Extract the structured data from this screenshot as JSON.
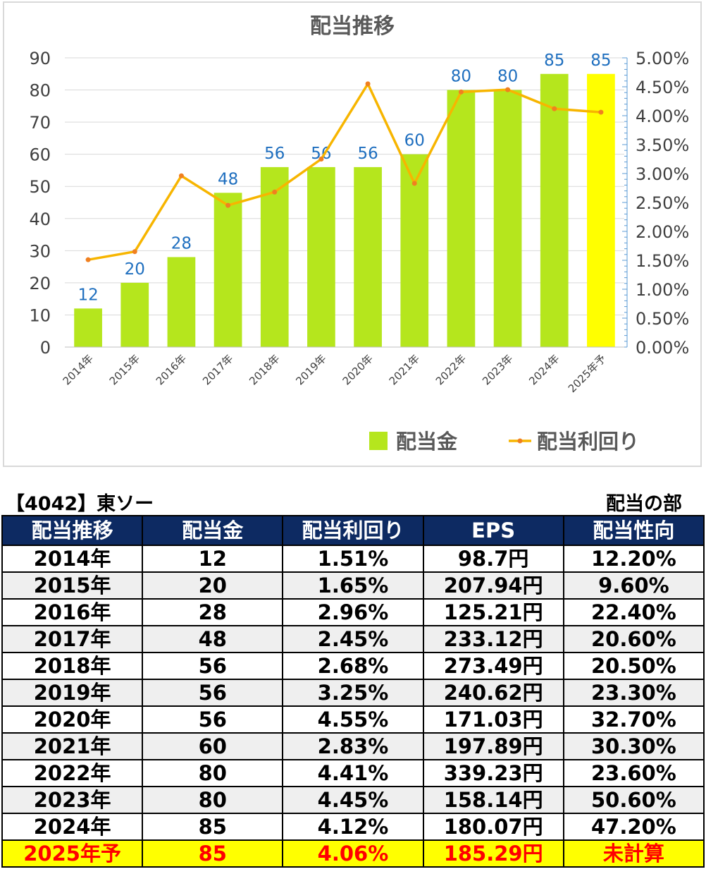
{
  "chart_data": {
    "type": "bar",
    "title": "配当推移",
    "categories": [
      "2014年",
      "2015年",
      "2016年",
      "2017年",
      "2018年",
      "2019年",
      "2020年",
      "2021年",
      "2022年",
      "2023年",
      "2024年",
      "2025年予"
    ],
    "series": [
      {
        "name": "配当金",
        "type": "bar",
        "axis": "left",
        "color": "#b5e61d",
        "highlight_last_color": "#ffff00",
        "values": [
          12,
          20,
          28,
          48,
          56,
          56,
          56,
          60,
          80,
          80,
          85,
          85
        ]
      },
      {
        "name": "配当利回り",
        "type": "line",
        "axis": "right",
        "color": "#f7b500",
        "marker_color": "#f08020",
        "values": [
          1.51,
          1.65,
          2.96,
          2.45,
          2.68,
          3.25,
          4.55,
          2.83,
          4.41,
          4.45,
          4.12,
          4.06
        ]
      }
    ],
    "ylim_left": [
      0,
      90
    ],
    "yticks_left": [
      "0",
      "10",
      "20",
      "30",
      "40",
      "50",
      "60",
      "70",
      "80",
      "90"
    ],
    "ylim_right": [
      0,
      5
    ],
    "yticks_right": [
      "0.00%",
      "0.50%",
      "1.00%",
      "1.50%",
      "2.00%",
      "2.50%",
      "3.00%",
      "3.50%",
      "4.00%",
      "4.50%",
      "5.00%"
    ],
    "data_label_color": "#1f6fbf",
    "grid": true,
    "legend_position": "bottom-right"
  },
  "header": {
    "title": "【4042】東ソー",
    "section": "配当の部"
  },
  "table": {
    "columns": [
      "配当推移",
      "配当金",
      "配当利回り",
      "EPS",
      "配当性向"
    ],
    "rows": [
      [
        "2014年",
        "12",
        "1.51%",
        "98.7円",
        "12.20%"
      ],
      [
        "2015年",
        "20",
        "1.65%",
        "207.94円",
        "9.60%"
      ],
      [
        "2016年",
        "28",
        "2.96%",
        "125.21円",
        "22.40%"
      ],
      [
        "2017年",
        "48",
        "2.45%",
        "233.12円",
        "20.60%"
      ],
      [
        "2018年",
        "56",
        "2.68%",
        "273.49円",
        "20.50%"
      ],
      [
        "2019年",
        "56",
        "3.25%",
        "240.62円",
        "23.30%"
      ],
      [
        "2020年",
        "56",
        "4.55%",
        "171.03円",
        "32.70%"
      ],
      [
        "2021年",
        "60",
        "2.83%",
        "197.89円",
        "30.30%"
      ],
      [
        "2022年",
        "80",
        "4.41%",
        "339.23円",
        "23.60%"
      ],
      [
        "2023年",
        "80",
        "4.45%",
        "158.14円",
        "50.60%"
      ],
      [
        "2024年",
        "85",
        "4.12%",
        "180.07円",
        "47.20%"
      ],
      [
        "2025年予",
        "85",
        "4.06%",
        "185.29円",
        "未計算"
      ]
    ]
  }
}
